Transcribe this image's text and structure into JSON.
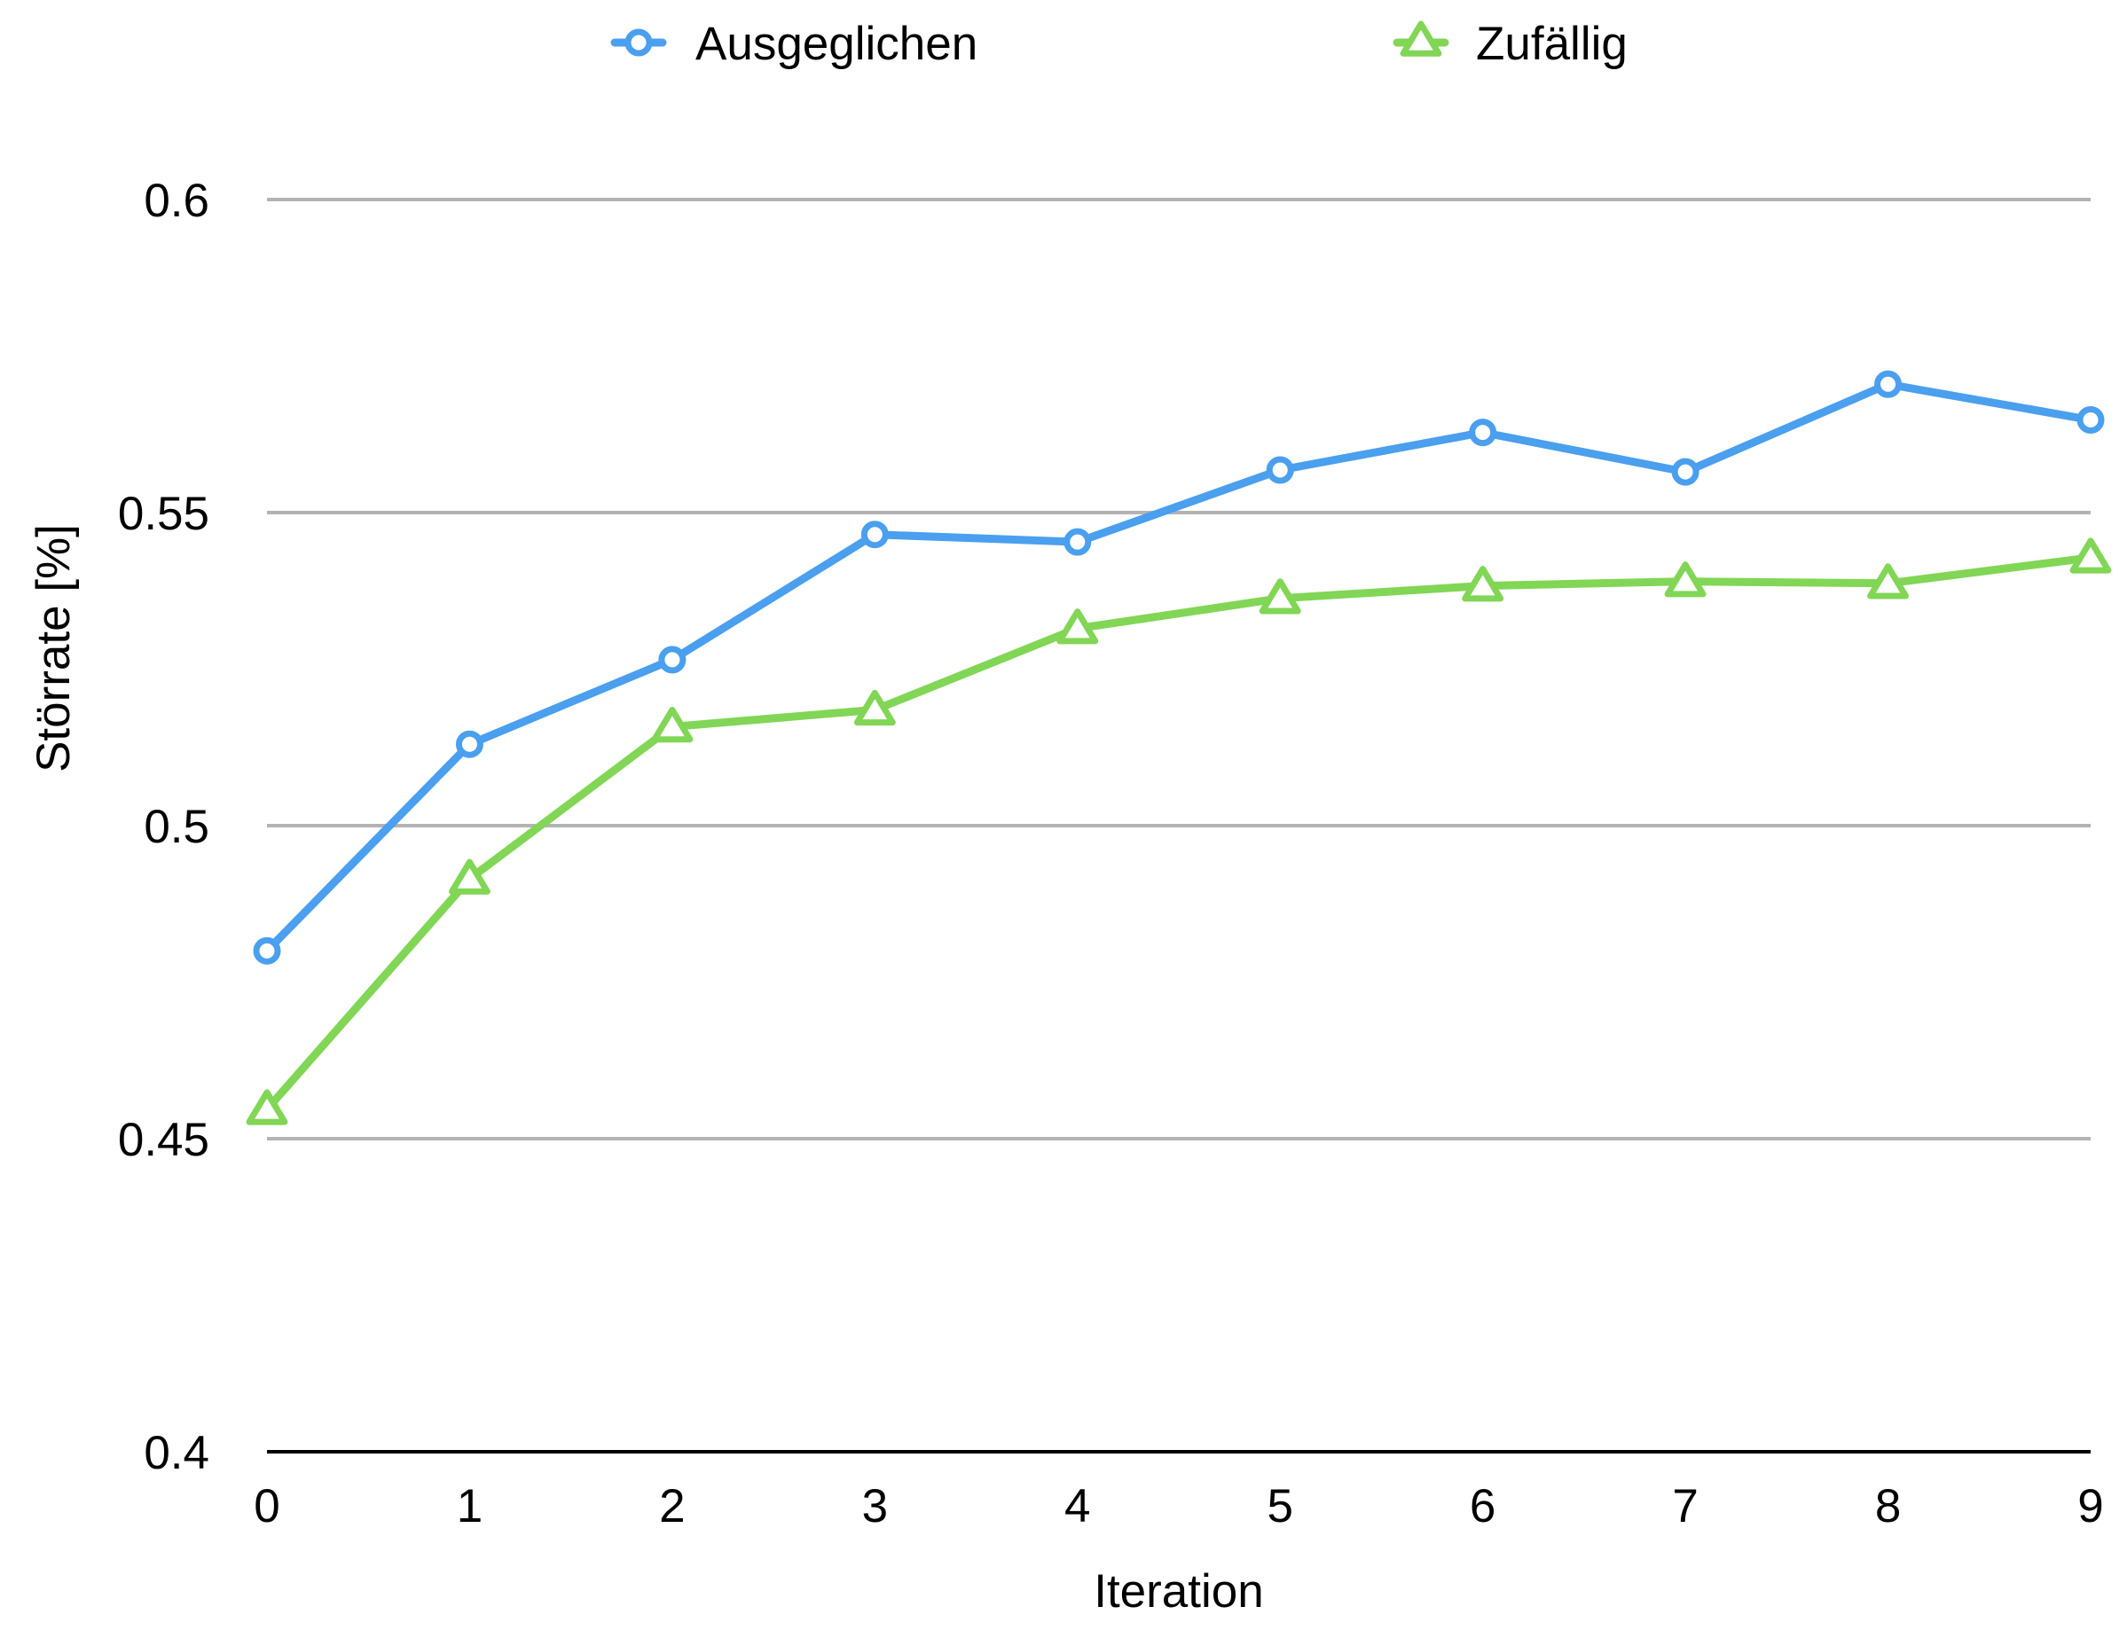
{
  "chart_data": {
    "type": "line",
    "title": "",
    "xlabel": "Iteration",
    "ylabel": "Störrate [%]",
    "x": [
      0,
      1,
      2,
      3,
      4,
      5,
      6,
      7,
      8,
      9
    ],
    "xticks": [
      "0",
      "1",
      "2",
      "3",
      "4",
      "5",
      "6",
      "7",
      "8",
      "9"
    ],
    "yticks": [
      "0.4",
      "0.45",
      "0.5",
      "0.55",
      "0.6"
    ],
    "ylim": [
      0.4,
      0.6
    ],
    "grid": "horizontal",
    "legend_position": "top",
    "series": [
      {
        "name": "Ausgeglichen",
        "color": "#4a9fee",
        "marker": "circle",
        "values": [
          0.48,
          0.513,
          0.5265,
          0.5465,
          0.5453,
          0.5568,
          0.5628,
          0.5565,
          0.5705,
          0.5648
        ]
      },
      {
        "name": "Zufällig",
        "color": "#81d655",
        "marker": "triangle",
        "values": [
          0.4547,
          0.4915,
          0.5158,
          0.5185,
          0.5315,
          0.5363,
          0.5383,
          0.539,
          0.5387,
          0.5428
        ]
      }
    ]
  }
}
